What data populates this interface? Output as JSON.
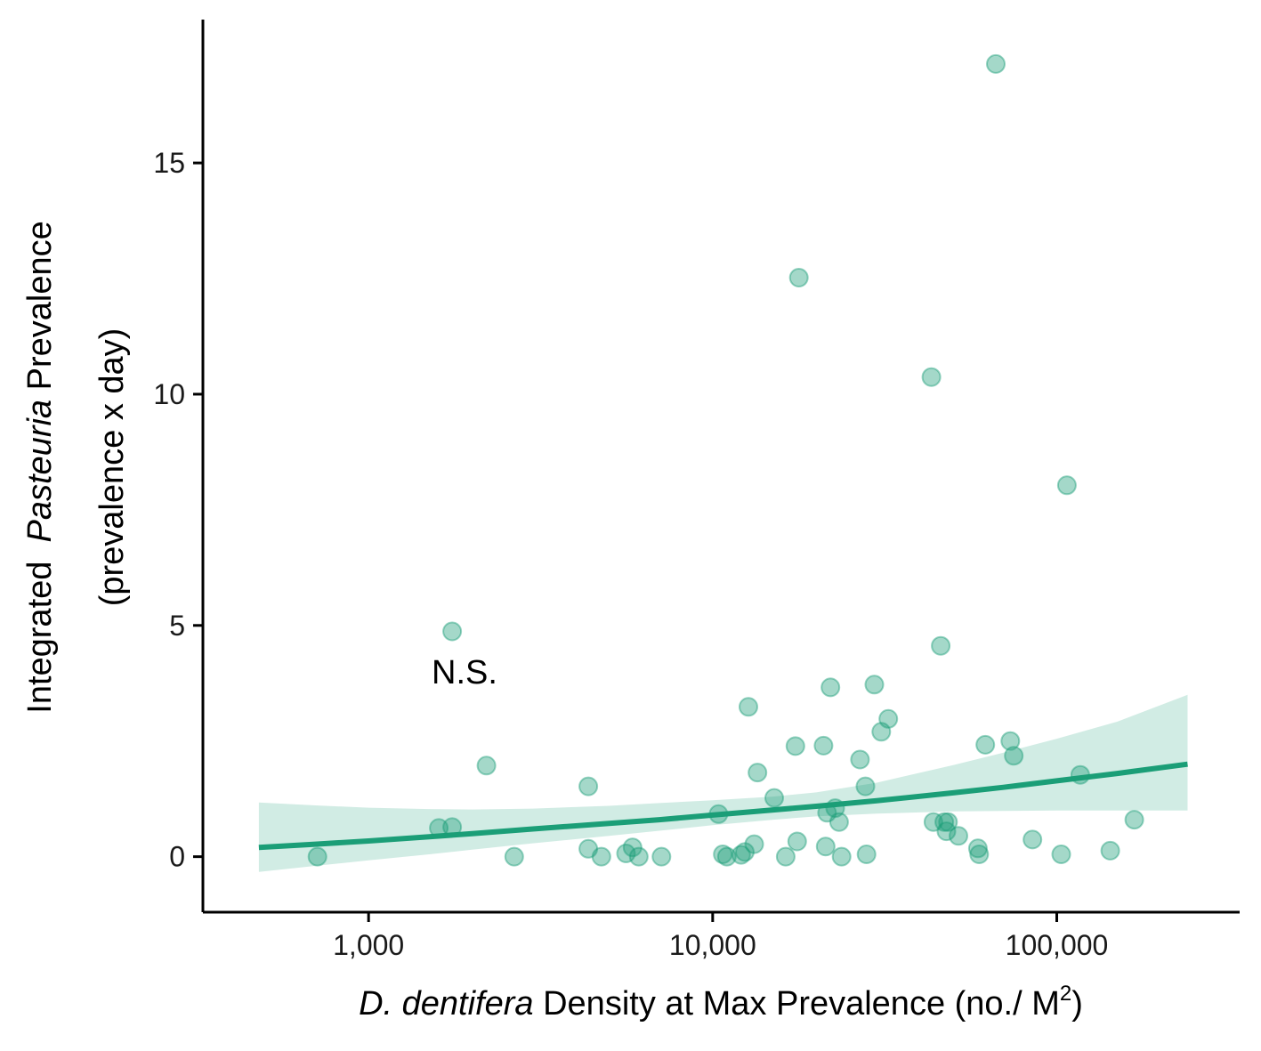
{
  "chart_data": {
    "type": "scatter",
    "x_scale": "log10",
    "x_range": [
      330,
      340000
    ],
    "y_range": [
      -1.2,
      18.1
    ],
    "x_ticks": [
      {
        "value": 1000,
        "label": "1,000"
      },
      {
        "value": 10000,
        "label": "10,000"
      },
      {
        "value": 100000,
        "label": "100,000"
      }
    ],
    "y_ticks": [
      {
        "value": 0,
        "label": "0"
      },
      {
        "value": 5,
        "label": "5"
      },
      {
        "value": 10,
        "label": "10"
      },
      {
        "value": 15,
        "label": "15"
      }
    ],
    "xlabel": {
      "italic": "D. dentifera",
      "normal": " Density at Max Prevalence (no./ M",
      "superscript": "2",
      "close": ")"
    },
    "ylabel": {
      "line1_prefix": "Integrated  ",
      "line1_italic": "Pasteuria",
      "line1_suffix": " Prevalence",
      "line2": "(prevalence x day)"
    },
    "annotation": {
      "text": "N.S.",
      "x": 1900,
      "y": 4.0
    },
    "grid": false,
    "legend": "none",
    "colors": {
      "points": "#1b9e77",
      "fit_line": "#1b9e77",
      "ribbon": "#1b9e77"
    },
    "points": [
      [
        710,
        0.0
      ],
      [
        1600,
        0.62
      ],
      [
        1750,
        0.64
      ],
      [
        1750,
        4.87
      ],
      [
        2200,
        1.97
      ],
      [
        2650,
        0.0
      ],
      [
        4350,
        1.52
      ],
      [
        4350,
        0.17
      ],
      [
        4750,
        0.0
      ],
      [
        5600,
        0.07
      ],
      [
        5850,
        0.2
      ],
      [
        6100,
        0.0
      ],
      [
        7100,
        0.0
      ],
      [
        10400,
        0.92
      ],
      [
        10700,
        0.05
      ],
      [
        11000,
        0.0
      ],
      [
        12100,
        0.04
      ],
      [
        12400,
        0.1
      ],
      [
        12700,
        3.24
      ],
      [
        13200,
        0.27
      ],
      [
        13500,
        1.82
      ],
      [
        15100,
        1.27
      ],
      [
        16300,
        0.0
      ],
      [
        17400,
        2.39
      ],
      [
        17600,
        0.33
      ],
      [
        17800,
        12.52
      ],
      [
        21000,
        2.4
      ],
      [
        21300,
        0.22
      ],
      [
        21500,
        0.95
      ],
      [
        22000,
        3.66
      ],
      [
        22700,
        1.05
      ],
      [
        23300,
        0.75
      ],
      [
        23700,
        0.0
      ],
      [
        26800,
        2.1
      ],
      [
        27800,
        1.52
      ],
      [
        28000,
        0.05
      ],
      [
        29500,
        3.72
      ],
      [
        30900,
        2.7
      ],
      [
        32400,
        2.98
      ],
      [
        43200,
        10.37
      ],
      [
        43800,
        0.75
      ],
      [
        46000,
        4.56
      ],
      [
        47100,
        0.75
      ],
      [
        47800,
        0.55
      ],
      [
        48300,
        0.75
      ],
      [
        51800,
        0.45
      ],
      [
        59000,
        0.18
      ],
      [
        59500,
        0.05
      ],
      [
        62000,
        2.42
      ],
      [
        66500,
        17.14
      ],
      [
        73300,
        2.5
      ],
      [
        75000,
        2.18
      ],
      [
        85000,
        0.37
      ],
      [
        103000,
        0.05
      ],
      [
        107000,
        8.03
      ],
      [
        117000,
        1.77
      ],
      [
        143000,
        0.13
      ],
      [
        168000,
        0.8
      ]
    ],
    "fit": {
      "x": [
        480,
        700,
        1000,
        1500,
        2000,
        3000,
        5000,
        7000,
        10000,
        15000,
        20000,
        30000,
        50000,
        70000,
        100000,
        150000,
        240000
      ],
      "y": [
        0.2,
        0.27,
        0.34,
        0.43,
        0.5,
        0.6,
        0.72,
        0.8,
        0.9,
        1.01,
        1.09,
        1.21,
        1.38,
        1.5,
        1.64,
        1.8,
        2.0
      ],
      "lower": [
        -0.33,
        -0.2,
        -0.08,
        0.05,
        0.15,
        0.29,
        0.45,
        0.56,
        0.68,
        0.8,
        0.87,
        0.93,
        0.98,
        0.99,
        1.0,
        1.0,
        1.0
      ],
      "upper": [
        1.17,
        1.11,
        1.06,
        1.03,
        1.02,
        1.04,
        1.1,
        1.16,
        1.22,
        1.3,
        1.39,
        1.6,
        1.98,
        2.25,
        2.55,
        2.92,
        3.5
      ]
    }
  }
}
